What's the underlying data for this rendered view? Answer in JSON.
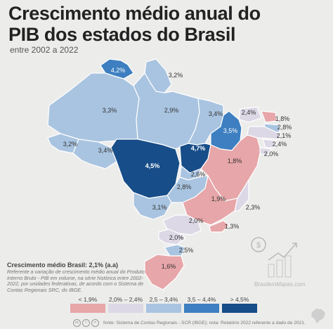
{
  "title_line1": "Crescimento médio anual do",
  "title_line2": "PIB dos estados do Brasil",
  "subtitle": "entre 2002 a 2022",
  "note_head": "Crescimento médio Brasil: 2,1% (a.a)",
  "note_body": "Referente a variação de crescimento médio anual do Produto Interno Bruto - PIB em volume, na série histórica entre 2002-2022, por unidades federativas, de acordo com o Sistema de Contas Regionais SRC, do IBGE.",
  "legend": [
    {
      "label": "< 1,9%",
      "color": "#e7a6a9"
    },
    {
      "label": "2,0% – 2,4%",
      "color": "#ddd8e6"
    },
    {
      "label": "2,5 – 3,4%",
      "color": "#a9c4e0"
    },
    {
      "label": "3,5 – 4,4%",
      "color": "#3d7fc0"
    },
    {
      "label": "> 4,5%",
      "color": "#174d88"
    }
  ],
  "footer": "fonte: Sistema de Contas Regionais - SCR (IBGE); nota: Relatório 2022 referente a dado de 2021.",
  "brand": "BrasilemMapas.com",
  "chart_data": {
    "type": "map",
    "colors": {
      "high": "#174d88",
      "mid_high": "#3d7fc0",
      "mid": "#a9c4e0",
      "mid_low": "#ddd8e6",
      "low": "#e7a6a9",
      "border": "#ffffff"
    },
    "regions": [
      {
        "label": "4,2%",
        "value": 4.2,
        "cls": "mid_high"
      },
      {
        "label": "3,2%",
        "value": 3.2,
        "cls": "mid"
      },
      {
        "label": "3,3%",
        "value": 3.3,
        "cls": "mid"
      },
      {
        "label": "2,9%",
        "value": 2.9,
        "cls": "mid"
      },
      {
        "label": "3,4%",
        "value": 3.4,
        "cls": "mid"
      },
      {
        "label": "2,4%",
        "value": 2.4,
        "cls": "mid_low"
      },
      {
        "label": "1,8%",
        "value": 1.8,
        "cls": "low"
      },
      {
        "label": "2,8%",
        "value": 2.8,
        "cls": "mid"
      },
      {
        "label": "2,1%",
        "value": 2.1,
        "cls": "mid_low"
      },
      {
        "label": "3,5%",
        "value": 3.5,
        "cls": "mid_high"
      },
      {
        "label": "2,4%",
        "value": 2.4,
        "cls": "mid_low"
      },
      {
        "label": "2,0%",
        "value": 2.0,
        "cls": "mid_low"
      },
      {
        "label": "3,2%",
        "value": 3.2,
        "cls": "mid"
      },
      {
        "label": "3,4%",
        "value": 3.4,
        "cls": "mid"
      },
      {
        "label": "4,5%",
        "value": 4.5,
        "cls": "high"
      },
      {
        "label": "4,7%",
        "value": 4.7,
        "cls": "high"
      },
      {
        "label": "1,8%",
        "value": 1.8,
        "cls": "low"
      },
      {
        "label": "2,6%",
        "value": 2.6,
        "cls": "mid"
      },
      {
        "label": "2,8%",
        "value": 2.8,
        "cls": "mid"
      },
      {
        "label": "1,9%",
        "value": 1.9,
        "cls": "low"
      },
      {
        "label": "3,1%",
        "value": 3.1,
        "cls": "mid"
      },
      {
        "label": "2,3%",
        "value": 2.3,
        "cls": "mid_low"
      },
      {
        "label": "2,0%",
        "value": 2.0,
        "cls": "mid_low"
      },
      {
        "label": "1,3%",
        "value": 1.3,
        "cls": "low"
      },
      {
        "label": "2,0%",
        "value": 2.0,
        "cls": "mid_low"
      },
      {
        "label": "2,5%",
        "value": 2.5,
        "cls": "mid"
      },
      {
        "label": "1,6%",
        "value": 1.6,
        "cls": "low"
      }
    ]
  }
}
